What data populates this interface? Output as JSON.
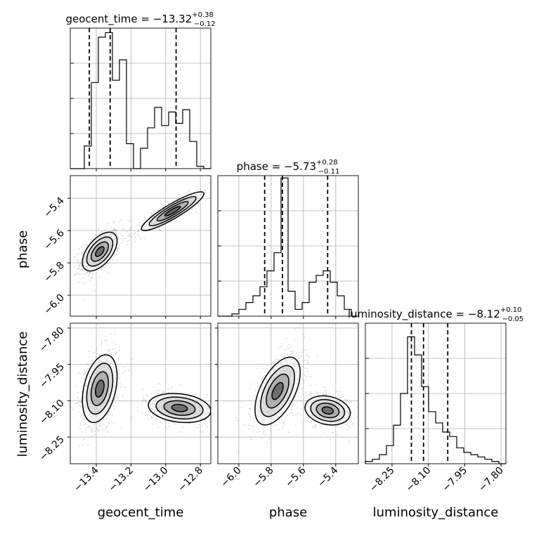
{
  "chart_data": {
    "type": "corner",
    "parameters": [
      {
        "name": "geocent_time",
        "median": "−13.32",
        "plus": "+0.38",
        "minus": "−0.12",
        "range": [
          -13.55,
          -12.74
        ],
        "ticks": [
          {
            "v": -13.4,
            "label": "−13.4"
          },
          {
            "v": -13.2,
            "label": "−13.2"
          },
          {
            "v": -13.0,
            "label": "−13.0"
          },
          {
            "v": -12.8,
            "label": "−12.8"
          }
        ],
        "quantiles": [
          -13.44,
          -13.32,
          -12.94
        ]
      },
      {
        "name": "phase",
        "median": "−5.73",
        "plus": "+0.28",
        "minus": "−0.11",
        "range": [
          -6.13,
          -5.26
        ],
        "ticks": [
          {
            "v": -6.0,
            "label": "−6.0"
          },
          {
            "v": -5.8,
            "label": "−5.8"
          },
          {
            "v": -5.6,
            "label": "−5.6"
          },
          {
            "v": -5.4,
            "label": "−5.4"
          }
        ],
        "quantiles": [
          -5.84,
          -5.73,
          -5.45
        ]
      },
      {
        "name": "luminosity_distance",
        "median": "−8.12",
        "plus": "+0.10",
        "minus": "−0.05",
        "range": [
          -8.36,
          -7.78
        ],
        "ticks": [
          {
            "v": -8.25,
            "label": "−8.25"
          },
          {
            "v": -8.1,
            "label": "−8.10"
          },
          {
            "v": -7.95,
            "label": "−7.95"
          },
          {
            "v": -7.8,
            "label": "−7.80"
          }
        ],
        "quantiles": [
          -8.17,
          -8.12,
          -8.02
        ]
      }
    ],
    "histograms": [
      {
        "param": "geocent_time",
        "ymax": 62,
        "counts": [
          0,
          0,
          10,
          38,
          58,
          60,
          39,
          48,
          11,
          0,
          9,
          18,
          27,
          19,
          25,
          20,
          26,
          12,
          1,
          0
        ]
      },
      {
        "param": "phase",
        "ymax": 62,
        "counts": [
          0,
          0,
          1,
          3,
          6,
          9,
          13,
          20,
          28,
          61,
          11,
          3,
          6,
          15,
          18,
          20,
          15,
          9,
          3,
          0
        ]
      },
      {
        "param": "luminosity_distance",
        "ymax": 62,
        "counts": [
          1,
          2,
          4,
          8,
          17,
          31,
          56,
          48,
          34,
          23,
          18,
          14,
          12,
          7,
          5,
          4,
          3,
          2,
          1,
          0
        ]
      }
    ],
    "clusters": [
      {
        "x": "geocent_time",
        "y": "phase",
        "mode": [
          -13.38,
          -5.73
        ],
        "sx": 0.05,
        "sy": 0.06,
        "rho": 0.55,
        "n": 650
      },
      {
        "x": "geocent_time",
        "y": "phase",
        "mode": [
          -12.96,
          -5.48
        ],
        "sx": 0.09,
        "sy": 0.06,
        "rho": 0.9,
        "n": 450
      },
      {
        "x": "geocent_time",
        "y": "luminosity_distance",
        "mode": [
          -13.38,
          -8.05
        ],
        "sx": 0.05,
        "sy": 0.07,
        "rho": 0.35,
        "n": 650
      },
      {
        "x": "geocent_time",
        "y": "luminosity_distance",
        "mode": [
          -12.92,
          -8.13
        ],
        "sx": 0.09,
        "sy": 0.03,
        "rho": -0.2,
        "n": 450
      },
      {
        "x": "phase",
        "y": "luminosity_distance",
        "mode": [
          -5.76,
          -8.06
        ],
        "sx": 0.07,
        "sy": 0.07,
        "rho": 0.55,
        "n": 650
      },
      {
        "x": "phase",
        "y": "luminosity_distance",
        "mode": [
          -5.45,
          -8.14
        ],
        "sx": 0.07,
        "sy": 0.03,
        "rho": -0.2,
        "n": 450
      }
    ],
    "contour_levels_sigma": [
      0.5,
      1.0,
      1.5,
      2.0
    ]
  }
}
